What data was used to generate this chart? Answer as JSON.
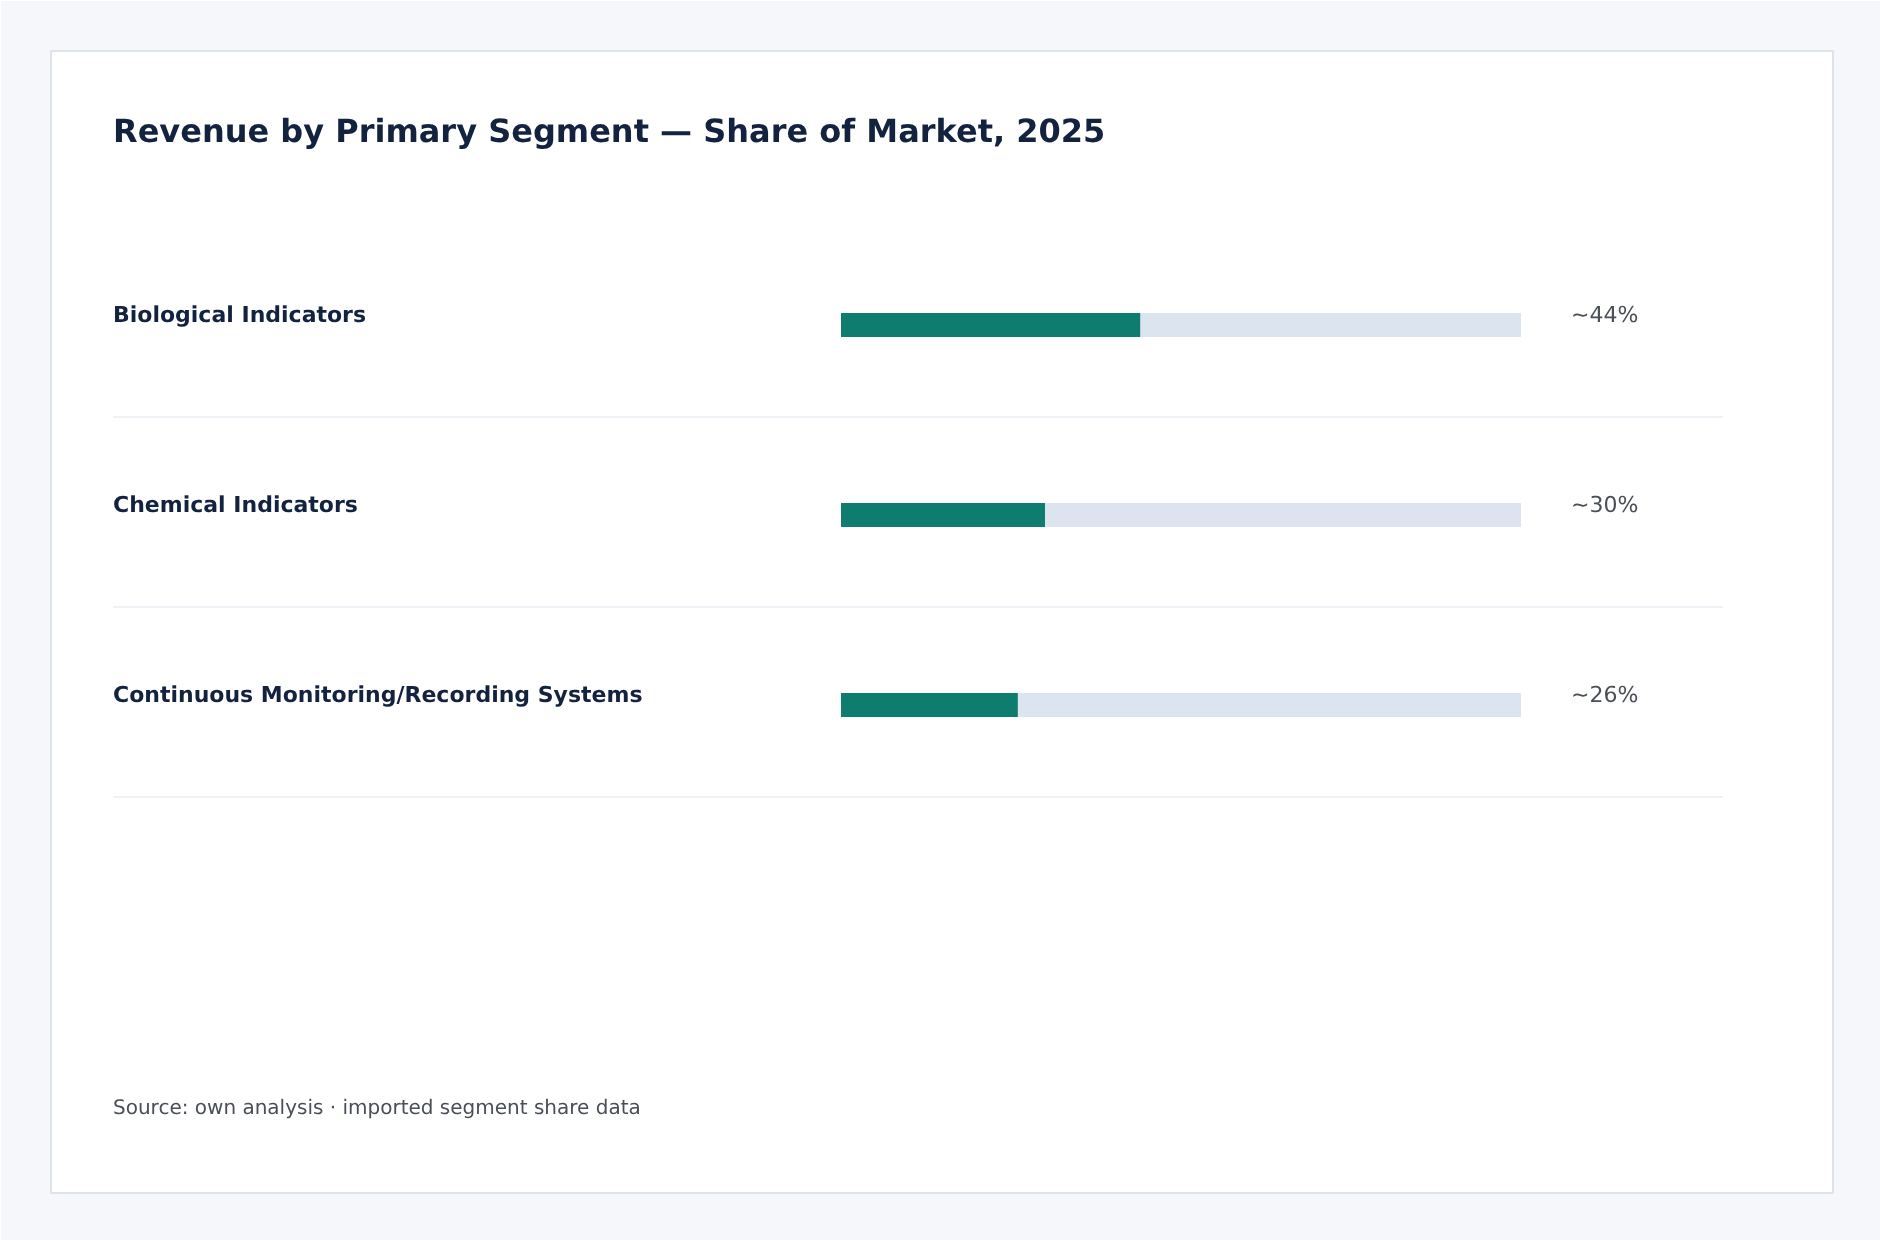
{
  "chart_data": {
    "type": "bar",
    "orientation": "horizontal",
    "title": "Revenue by Primary Segment — Share of Market, 2025",
    "categories": [
      "Biological Indicators",
      "Chemical Indicators",
      "Continuous Monitoring/Recording Systems"
    ],
    "values": [
      44,
      30,
      26
    ],
    "value_labels": [
      "~44%",
      "~30%",
      "~26%"
    ],
    "color": "#0e7c6e",
    "xlim": [
      0,
      100
    ],
    "tick_labels": false,
    "grid": "y",
    "annotations": [
      "Source: own analysis · imported segment share data"
    ]
  }
}
